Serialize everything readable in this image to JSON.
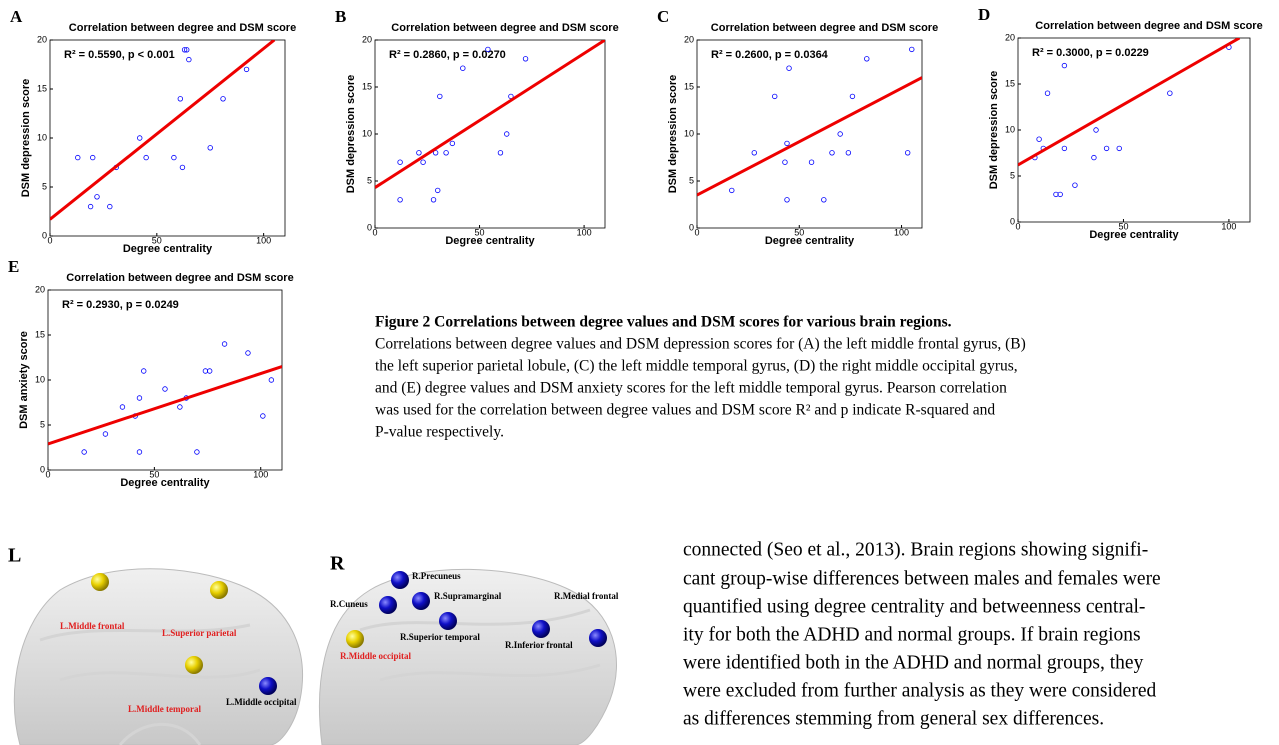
{
  "chart_data": [
    {
      "type": "scatter",
      "panel": "A",
      "title": "Correlation between degree and DSM score",
      "stat": "R² = 0.5590, p < 0.001",
      "x_label": "Degree centrality",
      "y_label": "DSM depression score",
      "color": "#0000ff",
      "fit_color": "#ee0000",
      "x": [
        13,
        19,
        20,
        22,
        28,
        31,
        42,
        45,
        58,
        61,
        62,
        63,
        64,
        65,
        75,
        81,
        92
      ],
      "y": [
        8,
        3,
        8,
        4,
        3,
        7,
        10,
        8,
        8,
        14,
        7,
        19,
        19,
        18,
        9,
        14,
        17
      ],
      "fit": {
        "x": [
          0,
          105
        ],
        "y": [
          1.7,
          20
        ]
      },
      "xlim": [
        0,
        110
      ],
      "ylim": [
        0,
        20
      ],
      "xticks": [
        0,
        50,
        100
      ],
      "yticks": [
        0,
        5,
        10,
        15,
        20
      ]
    },
    {
      "type": "scatter",
      "panel": "B",
      "title": "Correlation between degree and DSM score",
      "stat": "R² = 0.2860, p = 0.0270",
      "x_label": "Degree centrality",
      "y_label": "DSM depression score",
      "color": "#0000ff",
      "fit_color": "#ee0000",
      "x": [
        12,
        12,
        21,
        23,
        28,
        29,
        30,
        31,
        34,
        37,
        42,
        54,
        60,
        63,
        65,
        72
      ],
      "y": [
        7,
        3,
        8,
        7,
        3,
        8,
        4,
        14,
        8,
        9,
        17,
        19,
        8,
        10,
        14,
        18
      ],
      "fit": {
        "x": [
          0,
          110
        ],
        "y": [
          4.3,
          20
        ]
      },
      "xlim": [
        0,
        110
      ],
      "ylim": [
        0,
        20
      ],
      "xticks": [
        0,
        50,
        100
      ],
      "yticks": [
        0,
        5,
        10,
        15,
        20
      ]
    },
    {
      "type": "scatter",
      "panel": "C",
      "title": "Correlation between degree and DSM score",
      "stat": "R² = 0.2600, p = 0.0364",
      "x_label": "Degree centrality",
      "y_label": "DSM depression score",
      "color": "#0000ff",
      "fit_color": "#ee0000",
      "x": [
        17,
        28,
        38,
        43,
        44,
        45,
        44,
        56,
        62,
        66,
        70,
        74,
        76,
        83,
        103,
        105
      ],
      "y": [
        4,
        8,
        14,
        7,
        9,
        17,
        3,
        7,
        3,
        8,
        10,
        8,
        14,
        18,
        8,
        19
      ],
      "fit": {
        "x": [
          0,
          110
        ],
        "y": [
          3.5,
          16
        ]
      },
      "xlim": [
        0,
        110
      ],
      "ylim": [
        0,
        20
      ],
      "xticks": [
        0,
        50,
        100
      ],
      "yticks": [
        0,
        5,
        10,
        15,
        20
      ]
    },
    {
      "type": "scatter",
      "panel": "D",
      "title": "Correlation between degree and DSM score",
      "stat": "R² = 0.3000, p = 0.0229",
      "x_label": "Degree centrality",
      "y_label": "DSM depression score",
      "color": "#0000ff",
      "fit_color": "#ee0000",
      "x": [
        8,
        10,
        12,
        14,
        18,
        20,
        22,
        22,
        27,
        36,
        37,
        42,
        48,
        72,
        100
      ],
      "y": [
        7,
        9,
        8,
        14,
        3,
        3,
        17,
        8,
        4,
        7,
        10,
        8,
        8,
        14,
        19
      ],
      "fit": {
        "x": [
          0,
          105
        ],
        "y": [
          6.2,
          20
        ]
      },
      "xlim": [
        0,
        110
      ],
      "ylim": [
        0,
        20
      ],
      "xticks": [
        0,
        50,
        100
      ],
      "yticks": [
        0,
        5,
        10,
        15,
        20
      ]
    },
    {
      "type": "scatter",
      "panel": "E",
      "title": "Correlation between degree and DSM score",
      "stat": "R² = 0.2930, p = 0.0249",
      "x_label": "Degree centrality",
      "y_label": "DSM anxiety score",
      "color": "#0000ff",
      "fit_color": "#ee0000",
      "x": [
        17,
        27,
        35,
        41,
        43,
        43,
        45,
        55,
        62,
        65,
        70,
        74,
        76,
        83,
        94,
        101,
        105
      ],
      "y": [
        2,
        4,
        7,
        6,
        8,
        2,
        11,
        9,
        7,
        8,
        2,
        11,
        11,
        14,
        13,
        6,
        10
      ],
      "fit": {
        "x": [
          0,
          110
        ],
        "y": [
          2.9,
          11.5
        ]
      },
      "xlim": [
        0,
        110
      ],
      "ylim": [
        0,
        20
      ],
      "xticks": [
        0,
        50,
        100
      ],
      "yticks": [
        0,
        5,
        10,
        15,
        20
      ]
    }
  ],
  "caption": {
    "title": "Figure 2 Correlations between degree values and DSM scores for various brain regions.",
    "lines": [
      "Correlations between degree values and DSM depression scores for (A) the left middle frontal gyrus, (B)",
      "the left superior parietal lobule, (C) the left middle temporal gyrus, (D) the right middle occipital gyrus,",
      "and (E) degree values and DSM anxiety scores for the left middle temporal gyrus. Pearson correlation",
      "was used for the correlation between degree values and DSM score R² and p indicate R-squared and",
      "P-value respectively."
    ]
  },
  "brain_figure": {
    "left_panel": "L",
    "right_panel": "R",
    "left_labels": [
      "L.Middle frontal",
      "L.Superior parietal",
      "L.Middle temporal",
      "L.Middle occipital"
    ],
    "right_labels": [
      "R.Precuneus",
      "R.Cuneus",
      "R.Supramarginal",
      "R.Medial frontal",
      "R.Superior temporal",
      "R.Inferior frontal",
      "R.Middle occipital"
    ]
  },
  "body": {
    "lines": [
      "connected (Seo et al., 2013). Brain regions showing signifi-",
      "cant group-wise differences between males and females were",
      "quantified using degree centrality and betweenness central-",
      "ity for both the ADHD and normal groups. If brain regions",
      "were identified both in the ADHD and normal groups, they",
      "were excluded from further analysis as they were considered",
      "as differences stemming from general sex differences."
    ]
  }
}
